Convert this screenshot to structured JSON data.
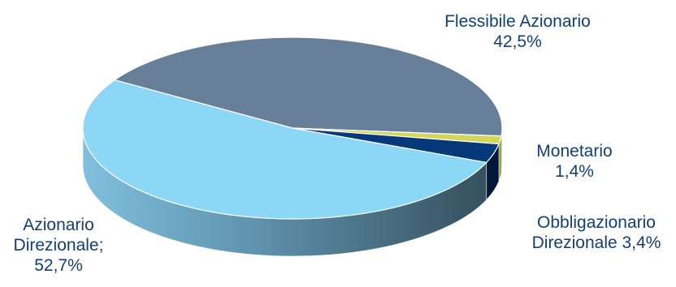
{
  "chart_data": {
    "type": "pie",
    "style": "3d",
    "title": "",
    "legend": "none",
    "slices": [
      {
        "label": "Flessibile Azionario",
        "value": 42.5,
        "display": "42,5%",
        "label_lines": [
          "Flessibile Azionario",
          "42,5%"
        ],
        "color_top": "#687F9A",
        "color_side": "#4E6178"
      },
      {
        "label": "Monetario",
        "value": 1.4,
        "display": "1,4%",
        "label_lines": [
          "Monetario",
          "1,4%"
        ],
        "color_top": "#D2D65A",
        "color_side": "#8F9433"
      },
      {
        "label": "Obbligazionario Direzionale",
        "value": 3.4,
        "display": "3,4%",
        "label_lines": [
          "Obbligazionario",
          "Direzionale 3,4%"
        ],
        "color_top": "#06387A",
        "color_side": "#02183A"
      },
      {
        "label": "Azionario Direzionale",
        "value": 52.7,
        "display": "52,7%",
        "label_lines": [
          "Azionario",
          "Direzionale;",
          "52,7%"
        ],
        "color_top": "#8CD6F6",
        "color_side": "#5E9CB8"
      }
    ],
    "label_color": "#123F7A"
  }
}
